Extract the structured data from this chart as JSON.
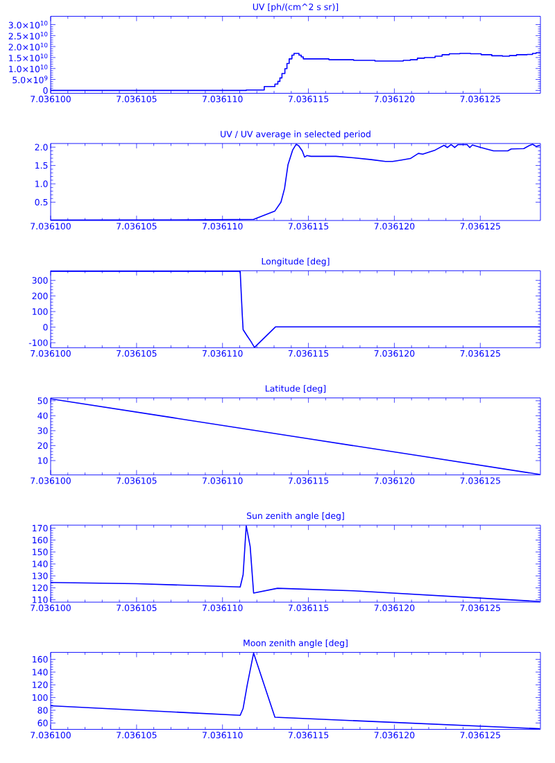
{
  "chart_data": [
    {
      "type": "step",
      "title": "UV [ph/(cm^2 s sr)]",
      "x": [
        7.0361,
        7.03611138,
        7.03611243,
        7.03611305,
        7.03611322,
        7.03611334,
        7.03611346,
        7.03611363,
        7.03611375,
        7.03611388,
        7.03611404,
        7.03611416,
        7.03611445,
        7.03611458,
        7.0361147,
        7.03611619,
        7.03611763,
        7.03611887,
        7.03612052,
        7.03612093,
        7.03612134,
        7.03612175,
        7.03612237,
        7.03612278,
        7.0361232,
        7.03612381,
        7.03612443,
        7.03612505,
        7.03612567,
        7.03612629,
        7.0361267,
        7.03612711,
        7.03612773,
        7.03612804,
        7.03612825,
        7.03612847
      ],
      "series": [
        {
          "color": "#0000ff",
          "values": [
            0,
            200000000.0,
            1800000000.0,
            2900000000.0,
            4100000000.0,
            5700000000.0,
            7700000000.0,
            9900000000.0,
            12300000000.0,
            14400000000.0,
            16100000000.0,
            16900000000.0,
            16100000000.0,
            15300000000.0,
            14400000000.0,
            14000000000.0,
            13700000000.0,
            13400000000.0,
            13700000000.0,
            14000000000.0,
            14700000000.0,
            15000000000.0,
            15600000000.0,
            16300000000.0,
            16700000000.0,
            16900000000.0,
            16700000000.0,
            16300000000.0,
            15800000000.0,
            15600000000.0,
            15900000000.0,
            16300000000.0,
            16400000000.0,
            16900000000.0,
            17200000000.0,
            16900000000.0
          ]
        }
      ],
      "xlim": [
        7.0361,
        7.0361285
      ],
      "ylim": [
        -1300000000.0,
        33800000000.0
      ],
      "xticks": [
        {
          "value": 7.0361,
          "label": "7.036100"
        },
        {
          "value": 7.036105,
          "label": "7.036105"
        },
        {
          "value": 7.03611,
          "label": "7.036110"
        },
        {
          "value": 7.036115,
          "label": "7.036115"
        },
        {
          "value": 7.03612,
          "label": "7.036120"
        },
        {
          "value": 7.036125,
          "label": "7.036125"
        }
      ],
      "yticks": [
        0,
        {
          "value": 5000000000.0,
          "label": "5.0×10$^{9}$"
        },
        {
          "value": 10000000000.0,
          "label": "1.0×10$^{10}$"
        },
        {
          "value": 15000000000.0,
          "label": "1.5×10$^{10}$"
        },
        {
          "value": 20000000000.0,
          "label": "2.0×10$^{10}$"
        },
        {
          "value": 25000000000.0,
          "label": "2.5×10$^{10}$"
        },
        {
          "value": 30000000000.0,
          "label": "3.0×10$^{10}$"
        }
      ]
    },
    {
      "type": "line",
      "title": "UV / UV average in selected period",
      "x": [
        7.0361,
        7.03610922,
        7.03611181,
        7.03611305,
        7.0361134,
        7.03611361,
        7.03611381,
        7.03611408,
        7.03611429,
        7.03611443,
        7.03611464,
        7.03611478,
        7.03611491,
        7.03611515,
        7.0361166,
        7.03611763,
        7.03611866,
        7.03611948,
        7.0361199,
        7.03612041,
        7.03612093,
        7.0361214,
        7.03612165,
        7.03612237,
        7.03612289,
        7.03612309,
        7.0361233,
        7.03612351,
        7.03612371,
        7.03612423,
        7.03612439,
        7.03612454,
        7.03612505,
        7.03612577,
        7.0361266,
        7.0361268,
        7.03612753,
        7.03612784,
        7.03612804,
        7.03612825,
        7.03612847
      ],
      "series": [
        {
          "color": "#0000ff",
          "values": [
            0.01,
            0.02,
            0.03,
            0.26,
            0.5,
            0.87,
            1.52,
            1.92,
            2.08,
            2.04,
            1.9,
            1.73,
            1.77,
            1.75,
            1.75,
            1.71,
            1.66,
            1.61,
            1.61,
            1.65,
            1.69,
            1.83,
            1.81,
            1.92,
            2.05,
            1.99,
            2.07,
            1.99,
            2.07,
            2.07,
            1.99,
            2.06,
            1.99,
            1.9,
            1.9,
            1.95,
            1.96,
            2.04,
            2.08,
            2.02,
            2.05
          ]
        }
      ],
      "xlim": [
        7.0361,
        7.0361285
      ],
      "ylim": [
        0,
        2.1
      ],
      "xticks": [
        {
          "value": 7.0361,
          "label": "7.036100"
        },
        {
          "value": 7.036105,
          "label": "7.036105"
        },
        {
          "value": 7.03611,
          "label": "7.036110"
        },
        {
          "value": 7.036115,
          "label": "7.036115"
        },
        {
          "value": 7.03612,
          "label": "7.036120"
        },
        {
          "value": 7.036125,
          "label": "7.036125"
        }
      ],
      "yticks": [
        0.5,
        {
          "value": 1,
          "label": "1.0"
        },
        1.5,
        {
          "value": 2,
          "label": "2.0"
        }
      ]
    },
    {
      "type": "line",
      "title": "Longitude [deg]",
      "x": [
        7.0361,
        7.03611103,
        7.03611107,
        7.03611111,
        7.03611115,
        7.0361112,
        7.03611144,
        7.03611165,
        7.03611186,
        7.03611309,
        7.03612847
      ],
      "series": [
        {
          "color": "#0000ff",
          "values": [
            358,
            358,
            263,
            171,
            80,
            -16,
            -57,
            -91,
            -130,
            2,
            2
          ]
        }
      ],
      "xlim": [
        7.0361,
        7.0361285
      ],
      "ylim": [
        -132,
        362
      ],
      "xticks": [
        {
          "value": 7.0361,
          "label": "7.036100"
        },
        {
          "value": 7.036105,
          "label": "7.036105"
        },
        {
          "value": 7.03611,
          "label": "7.036110"
        },
        {
          "value": 7.036115,
          "label": "7.036115"
        },
        {
          "value": 7.03612,
          "label": "7.036120"
        },
        {
          "value": 7.036125,
          "label": "7.036125"
        }
      ],
      "yticks": [
        -100,
        0,
        100,
        200,
        300
      ]
    },
    {
      "type": "line",
      "title": "Latitude [deg]",
      "x": [
        7.0361,
        7.0361071,
        7.036115,
        7.0361215,
        7.03612847
      ],
      "series": [
        {
          "color": "#0000ff",
          "values": [
            51.3,
            38.7,
            24.6,
            13.1,
            0.7
          ]
        }
      ],
      "xlim": [
        7.0361,
        7.0361285
      ],
      "ylim": [
        0.4,
        51.9
      ],
      "xticks": [
        {
          "value": 7.0361,
          "label": "7.036100"
        },
        {
          "value": 7.036105,
          "label": "7.036105"
        },
        {
          "value": 7.03611,
          "label": "7.036110"
        },
        {
          "value": 7.036115,
          "label": "7.036115"
        },
        {
          "value": 7.03612,
          "label": "7.036120"
        },
        {
          "value": 7.036125,
          "label": "7.036125"
        }
      ],
      "yticks": [
        10,
        20,
        30,
        40,
        50
      ]
    },
    {
      "type": "line",
      "title": "Sun zenith angle [deg]",
      "x": [
        7.0361,
        7.036105,
        7.03611103,
        7.0361112,
        7.03611138,
        7.03611161,
        7.03611181,
        7.0361132,
        7.03611763,
        7.03612847
      ],
      "series": [
        {
          "color": "#0000ff",
          "values": [
            124.5,
            123.5,
            120.7,
            131,
            172,
            154.6,
            115.6,
            119.6,
            117.5,
            108.5
          ]
        }
      ],
      "xlim": [
        7.0361,
        7.0361285
      ],
      "ylim": [
        108,
        172.5
      ],
      "xticks": [
        {
          "value": 7.0361,
          "label": "7.036100"
        },
        {
          "value": 7.036105,
          "label": "7.036105"
        },
        {
          "value": 7.03611,
          "label": "7.036110"
        },
        {
          "value": 7.036115,
          "label": "7.036115"
        },
        {
          "value": 7.03612,
          "label": "7.036120"
        },
        {
          "value": 7.036125,
          "label": "7.036125"
        }
      ],
      "yticks": [
        110,
        120,
        130,
        140,
        150,
        160,
        170
      ]
    },
    {
      "type": "line",
      "title": "Moon zenith angle [deg]",
      "x": [
        7.0361,
        7.03611103,
        7.0361112,
        7.03611144,
        7.03611181,
        7.03611305,
        7.03612847
      ],
      "series": [
        {
          "color": "#0000ff",
          "values": [
            87,
            72,
            83,
            120,
            170,
            69,
            51
          ]
        }
      ],
      "xlim": [
        7.0361,
        7.0361285
      ],
      "ylim": [
        50,
        171
      ],
      "xticks": [
        {
          "value": 7.0361,
          "label": "7.036100"
        },
        {
          "value": 7.036105,
          "label": "7.036105"
        },
        {
          "value": 7.03611,
          "label": "7.036110"
        },
        {
          "value": 7.036115,
          "label": "7.036115"
        },
        {
          "value": 7.03612,
          "label": "7.036120"
        },
        {
          "value": 7.036125,
          "label": "7.036125"
        }
      ],
      "yticks": [
        60,
        80,
        100,
        120,
        140,
        160
      ]
    }
  ]
}
